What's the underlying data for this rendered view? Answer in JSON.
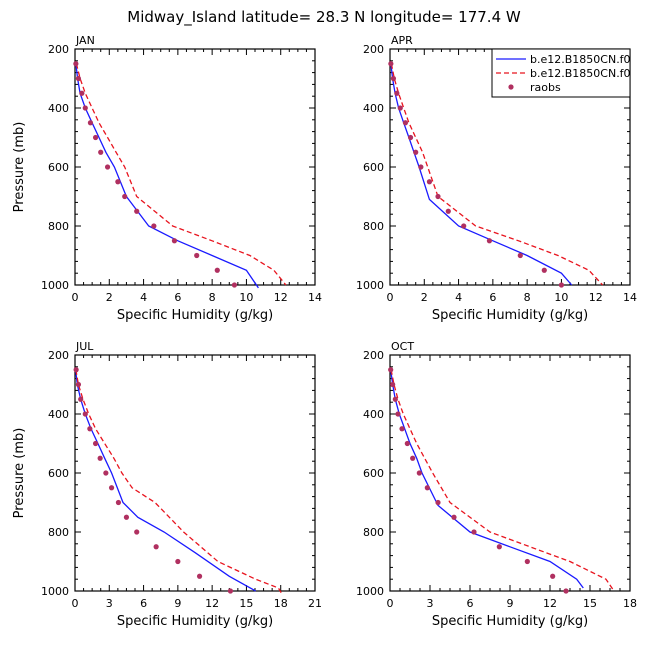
{
  "figure_title": "Midway_Island  latitude= 28.3 N longitude= 177.4 W",
  "legend": {
    "entries": [
      {
        "label": "b.e12.B1850CN.f0",
        "style": "solid",
        "color": "#1a1aff"
      },
      {
        "label": "b.e12.B1850CN.f0",
        "style": "dashed",
        "color": "#e8141e"
      },
      {
        "label": "raobs",
        "style": "dots",
        "color": "#b03060"
      }
    ]
  },
  "chart_data": [
    {
      "type": "line",
      "panel": "JAN",
      "title": "JAN",
      "xlabel": "Specific Humidity (g/kg)",
      "ylabel": "Pressure (mb)",
      "xlim": [
        0,
        14
      ],
      "ylim": [
        1000,
        200
      ],
      "xticks": [
        "0",
        "2",
        "4",
        "6",
        "8",
        "10",
        "12",
        "14"
      ],
      "yticks": [
        "200",
        "400",
        "600",
        "800",
        "1000"
      ],
      "series": [
        {
          "name": "b.e12.B1850CN.f0",
          "style": "solid",
          "color": "#1a1aff",
          "x": [
            0.05,
            0.15,
            0.3,
            0.6,
            1.0,
            1.4,
            1.8,
            2.3,
            3.0,
            4.3,
            6.0,
            8.0,
            10.0,
            10.7
          ],
          "y": [
            250,
            300,
            350,
            400,
            450,
            500,
            550,
            600,
            700,
            800,
            850,
            900,
            950,
            1010
          ]
        },
        {
          "name": "b.e12.B1850CN.f0",
          "style": "dashed",
          "color": "#e8141e",
          "x": [
            0.08,
            0.3,
            0.6,
            1.0,
            1.4,
            1.9,
            2.4,
            2.9,
            3.6,
            5.7,
            8.0,
            10.2,
            11.6,
            12.3
          ],
          "y": [
            250,
            300,
            350,
            400,
            450,
            500,
            550,
            600,
            700,
            800,
            850,
            900,
            950,
            1000
          ]
        },
        {
          "name": "raobs",
          "style": "dots",
          "color": "#b03060",
          "x": [
            0.05,
            0.2,
            0.4,
            0.6,
            0.9,
            1.2,
            1.5,
            1.9,
            2.5,
            2.9,
            3.6,
            4.6,
            5.8,
            7.1,
            8.3,
            9.3
          ],
          "y": [
            250,
            300,
            350,
            400,
            450,
            500,
            550,
            600,
            650,
            700,
            750,
            800,
            850,
            900,
            950,
            1000
          ]
        }
      ]
    },
    {
      "type": "line",
      "panel": "APR",
      "title": "APR",
      "xlabel": "Specific Humidity (g/kg)",
      "ylabel": "",
      "xlim": [
        0,
        14
      ],
      "ylim": [
        1000,
        200
      ],
      "xticks": [
        "0",
        "2",
        "4",
        "6",
        "8",
        "10",
        "12",
        "14"
      ],
      "yticks": [
        "200",
        "400",
        "600",
        "800",
        "1000"
      ],
      "series": [
        {
          "name": "b.e12.B1850CN.f0",
          "style": "solid",
          "color": "#1a1aff",
          "x": [
            0.05,
            0.15,
            0.3,
            0.5,
            0.8,
            1.1,
            1.4,
            1.7,
            2.3,
            4.0,
            6.0,
            8.0,
            10.0,
            10.6
          ],
          "y": [
            250,
            300,
            350,
            400,
            450,
            500,
            550,
            600,
            710,
            800,
            850,
            900,
            960,
            1000
          ]
        },
        {
          "name": "b.e12.B1850CN.f0",
          "style": "dashed",
          "color": "#e8141e",
          "x": [
            0.08,
            0.25,
            0.5,
            0.8,
            1.1,
            1.5,
            1.9,
            2.2,
            2.8,
            5.0,
            7.5,
            9.8,
            11.6,
            12.4
          ],
          "y": [
            250,
            300,
            350,
            400,
            450,
            500,
            550,
            600,
            700,
            800,
            850,
            900,
            950,
            1000
          ]
        },
        {
          "name": "raobs",
          "style": "dots",
          "color": "#b03060",
          "x": [
            0.05,
            0.2,
            0.4,
            0.6,
            0.9,
            1.2,
            1.5,
            1.8,
            2.3,
            2.8,
            3.4,
            4.3,
            5.8,
            7.6,
            9.0,
            10.0
          ],
          "y": [
            250,
            300,
            350,
            400,
            450,
            500,
            550,
            600,
            650,
            700,
            750,
            800,
            850,
            900,
            950,
            1000
          ]
        }
      ]
    },
    {
      "type": "line",
      "panel": "JUL",
      "title": "JUL",
      "xlabel": "Specific Humidity (g/kg)",
      "ylabel": "Pressure (mb)",
      "xlim": [
        0,
        21
      ],
      "ylim": [
        1000,
        200
      ],
      "xticks": [
        "0",
        "3",
        "6",
        "9",
        "12",
        "15",
        "18",
        "21"
      ],
      "yticks": [
        "200",
        "400",
        "600",
        "800",
        "1000"
      ],
      "series": [
        {
          "name": "b.e12.B1850CN.f0",
          "style": "solid",
          "color": "#1a1aff",
          "x": [
            0.05,
            0.2,
            0.5,
            0.9,
            1.4,
            2.0,
            2.6,
            3.2,
            4.2,
            5.5,
            7.8,
            10.5,
            13.5,
            15.8
          ],
          "y": [
            250,
            300,
            350,
            400,
            450,
            500,
            550,
            600,
            700,
            750,
            800,
            870,
            950,
            1000
          ]
        },
        {
          "name": "b.e12.B1850CN.f0",
          "style": "dashed",
          "color": "#e8141e",
          "x": [
            0.08,
            0.3,
            0.7,
            1.2,
            1.8,
            2.6,
            3.4,
            4.1,
            5.0,
            7.0,
            9.5,
            12.5,
            15.8,
            17.8,
            18.1
          ],
          "y": [
            250,
            300,
            350,
            400,
            450,
            500,
            550,
            600,
            650,
            700,
            800,
            900,
            960,
            990,
            1010
          ]
        },
        {
          "name": "raobs",
          "style": "dots",
          "color": "#b03060",
          "x": [
            0.1,
            0.3,
            0.5,
            0.9,
            1.3,
            1.8,
            2.2,
            2.7,
            3.2,
            3.8,
            4.5,
            5.4,
            7.1,
            9.0,
            10.9,
            13.6
          ],
          "y": [
            250,
            300,
            350,
            400,
            450,
            500,
            550,
            600,
            650,
            700,
            750,
            800,
            850,
            900,
            950,
            1000
          ]
        }
      ]
    },
    {
      "type": "line",
      "panel": "OCT",
      "title": "OCT",
      "xlabel": "Specific Humidity (g/kg)",
      "ylabel": "",
      "xlim": [
        0,
        18
      ],
      "ylim": [
        1000,
        200
      ],
      "xticks": [
        "0",
        "3",
        "6",
        "9",
        "12",
        "15",
        "18"
      ],
      "yticks": [
        "200",
        "400",
        "600",
        "800",
        "1000"
      ],
      "series": [
        {
          "name": "b.e12.B1850CN.f0",
          "style": "solid",
          "color": "#1a1aff",
          "x": [
            0.05,
            0.2,
            0.4,
            0.7,
            1.1,
            1.5,
            2.0,
            2.4,
            3.6,
            6.0,
            9.0,
            12.0,
            14.0,
            14.5
          ],
          "y": [
            250,
            300,
            350,
            400,
            450,
            500,
            550,
            600,
            710,
            800,
            850,
            900,
            960,
            990
          ]
        },
        {
          "name": "b.e12.B1850CN.f0",
          "style": "dashed",
          "color": "#e8141e",
          "x": [
            0.08,
            0.3,
            0.6,
            1.0,
            1.5,
            2.0,
            2.6,
            3.2,
            4.5,
            7.5,
            10.5,
            13.5,
            16.2,
            16.8
          ],
          "y": [
            250,
            300,
            350,
            400,
            450,
            500,
            550,
            600,
            700,
            800,
            850,
            900,
            960,
            1000
          ]
        },
        {
          "name": "raobs",
          "style": "dots",
          "color": "#b03060",
          "x": [
            0.05,
            0.2,
            0.4,
            0.6,
            0.9,
            1.3,
            1.7,
            2.2,
            2.8,
            3.6,
            4.8,
            6.3,
            8.2,
            10.3,
            12.2,
            13.2
          ],
          "y": [
            250,
            300,
            350,
            400,
            450,
            500,
            550,
            600,
            650,
            700,
            750,
            800,
            850,
            900,
            950,
            1000
          ]
        }
      ]
    }
  ]
}
